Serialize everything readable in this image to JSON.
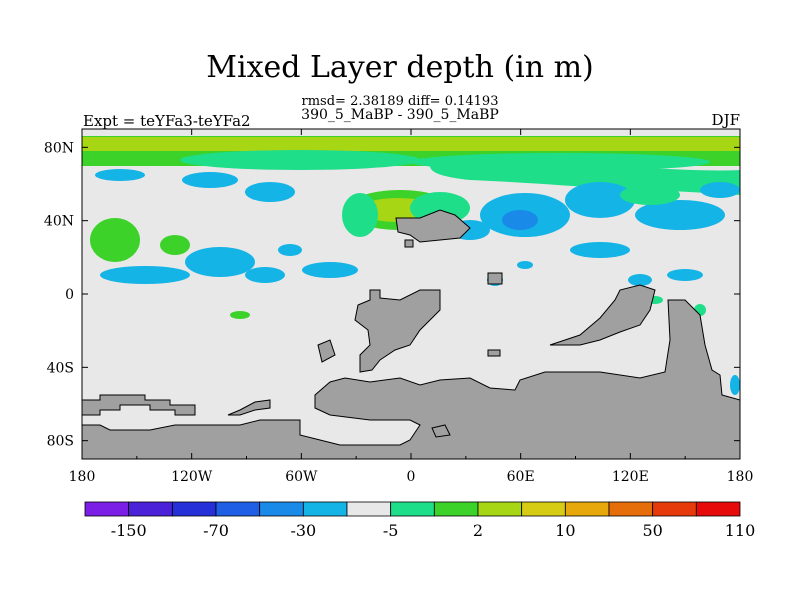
{
  "chart_data": {
    "type": "heatmap",
    "title": "Mixed Layer depth (in m)",
    "stats_line": "rmsd= 2.38189 diff= 0.14193",
    "period_line": "390_5_MaBP - 390_5_MaBP",
    "experiment_label": "Expt = teYFa3-teYFa2",
    "season_label": "DJF",
    "x_axis": {
      "range": [
        -180,
        180
      ],
      "ticks": [
        -180,
        -120,
        -60,
        0,
        60,
        120,
        180
      ],
      "tick_labels": [
        "180",
        "120W",
        "60W",
        "0",
        "60E",
        "120E",
        "180"
      ]
    },
    "y_axis": {
      "range": [
        -90,
        90
      ],
      "ticks": [
        -80,
        -40,
        0,
        40,
        80
      ],
      "tick_labels": [
        "80S",
        "40S",
        "0",
        "40N",
        "80N"
      ]
    },
    "colorbar": {
      "labels": [
        "-150",
        "-70",
        "-30",
        "-5",
        "2",
        "10",
        "50",
        "110"
      ],
      "colors": [
        "#7b1ee6",
        "#4b22d8",
        "#2630d8",
        "#1e5fe6",
        "#1a8ae8",
        "#14b4e6",
        "#e8e8e8",
        "#1ede8a",
        "#3cd22a",
        "#a6d614",
        "#d6cc14",
        "#e6a80a",
        "#e66e0a",
        "#e63a0a",
        "#e60a0a"
      ]
    },
    "land_color": "#a0a0a0",
    "background_color": "#e8e8e8",
    "features": [
      {
        "name": "arctic-band-green",
        "level": "10",
        "color": "#3cd22a",
        "lon_range": [
          -180,
          180
        ],
        "lat_range": [
          72,
          86
        ]
      },
      {
        "name": "arctic-band-lime",
        "level": "50",
        "color": "#a6d614",
        "lon_range": [
          -180,
          180
        ],
        "lat_range": [
          76,
          84
        ]
      },
      {
        "name": "north-pacific-cyan",
        "level": "-5",
        "color": "#14b4e6",
        "lon_range": [
          -170,
          -110
        ],
        "lat_range": [
          10,
          30
        ]
      },
      {
        "name": "north-atlantic-green",
        "level": "10",
        "color": "#3cd22a",
        "lon_range": [
          -60,
          30
        ],
        "lat_range": [
          30,
          55
        ]
      },
      {
        "name": "eurasia-cyan",
        "level": "-5",
        "color": "#14b4e6",
        "lon_range": [
          30,
          110
        ],
        "lat_range": [
          35,
          65
        ]
      }
    ]
  }
}
